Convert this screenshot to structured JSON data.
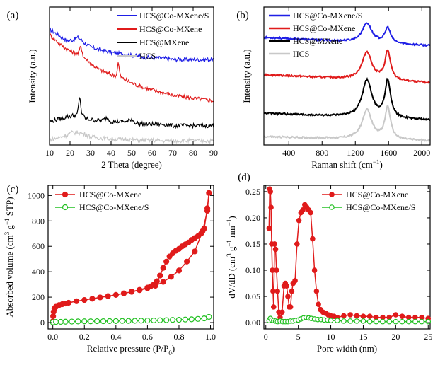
{
  "chart_data": [
    {
      "panel": "(a)",
      "type": "line",
      "xlabel": "2 Theta (degree)",
      "ylabel": "Intensity (a.u.)",
      "xlim": [
        10,
        90
      ],
      "xticks": [
        "10",
        "20",
        "30",
        "40",
        "50",
        "60",
        "70",
        "80",
        "90"
      ],
      "legend_position": "top-right",
      "series": [
        {
          "name": "HCS@Co-MXene/S",
          "color": "#1f1fe6",
          "offset": 0.62,
          "x": [
            10,
            14,
            18,
            21,
            24,
            27,
            30,
            35,
            40,
            45,
            50,
            55,
            60,
            65,
            70,
            75,
            80,
            85,
            90
          ],
          "y": [
            0.84,
            0.8,
            0.76,
            0.76,
            0.78,
            0.74,
            0.71,
            0.69,
            0.67,
            0.66,
            0.65,
            0.64,
            0.63,
            0.63,
            0.62,
            0.62,
            0.62,
            0.62,
            0.62
          ]
        },
        {
          "name": "HCS@Co-MXene",
          "color": "#e01b1b",
          "offset": 0.32,
          "x": [
            10,
            13,
            16,
            19,
            22,
            24,
            25.3,
            26.5,
            28,
            31,
            34,
            37,
            40,
            42.5,
            43.5,
            44.5,
            46,
            50,
            55,
            60,
            65,
            70,
            75,
            80,
            85,
            90
          ],
          "y": [
            0.8,
            0.76,
            0.72,
            0.69,
            0.67,
            0.66,
            0.72,
            0.64,
            0.62,
            0.58,
            0.55,
            0.53,
            0.51,
            0.5,
            0.6,
            0.5,
            0.48,
            0.45,
            0.42,
            0.4,
            0.38,
            0.36,
            0.35,
            0.34,
            0.33,
            0.32
          ]
        },
        {
          "name": "HCS@MXene",
          "color": "#000000",
          "offset": 0.14,
          "x": [
            10,
            15,
            20,
            23.5,
            24.8,
            25.5,
            26.5,
            28,
            32,
            36,
            38,
            40,
            44,
            48,
            50,
            52,
            56,
            60,
            65,
            70,
            75,
            80,
            85,
            90
          ],
          "y": [
            0.17,
            0.19,
            0.21,
            0.22,
            0.36,
            0.24,
            0.21,
            0.19,
            0.18,
            0.18,
            0.2,
            0.17,
            0.17,
            0.17,
            0.19,
            0.16,
            0.15,
            0.15,
            0.15,
            0.14,
            0.14,
            0.14,
            0.14,
            0.14
          ]
        },
        {
          "name": "HCS",
          "color": "#c8c8c8",
          "offset": 0.03,
          "x": [
            10,
            14,
            18,
            21,
            24,
            27,
            30,
            35,
            40,
            45,
            50,
            55,
            60,
            65,
            70,
            75,
            80,
            85,
            90
          ],
          "y": [
            0.04,
            0.05,
            0.07,
            0.09,
            0.09,
            0.08,
            0.06,
            0.05,
            0.045,
            0.04,
            0.04,
            0.035,
            0.035,
            0.03,
            0.03,
            0.03,
            0.03,
            0.03,
            0.03
          ]
        }
      ]
    },
    {
      "panel": "(b)",
      "type": "line",
      "xlabel": "Raman shift (cm−1)",
      "ylabel": "Intensity (a.u.)",
      "xlim": [
        100,
        2100
      ],
      "xticks": [
        "400",
        "800",
        "1200",
        "1600",
        "2000"
      ],
      "legend_position": "top-left",
      "peaks": {
        "D": 1340,
        "G": 1590
      },
      "series": [
        {
          "name": "HCS@Co-MXene/S",
          "color": "#1f1fe6",
          "baseline": 0.72,
          "d_height": 0.14,
          "g_height": 0.11,
          "slope": 0.06
        },
        {
          "name": "HCS@Co-MXene",
          "color": "#e01b1b",
          "baseline": 0.45,
          "d_height": 0.2,
          "g_height": 0.21,
          "slope": 0.06
        },
        {
          "name": "HCS@MXene",
          "color": "#000000",
          "baseline": 0.18,
          "d_height": 0.27,
          "g_height": 0.27,
          "slope": 0.05
        },
        {
          "name": "HCS",
          "color": "#c8c8c8",
          "baseline": 0.03,
          "d_height": 0.21,
          "g_height": 0.23,
          "slope": 0.03
        }
      ]
    },
    {
      "panel": "(c)",
      "type": "line",
      "xlabel": "Relative pressure (P/P0)",
      "ylabel": "Absorbed volume (cm3 g−1 STP)",
      "xlim": [
        -0.03,
        1.02
      ],
      "ylim": [
        -50,
        1080
      ],
      "xticks": [
        0.0,
        0.2,
        0.4,
        0.6,
        0.8,
        1.0
      ],
      "yticks": [
        0,
        200,
        400,
        600,
        800,
        1000
      ],
      "legend_position": "top-left",
      "series": [
        {
          "name": "HCS@Co-MXene",
          "color": "#e01b1b",
          "marker": "filled",
          "x": [
            0.0,
            0.002,
            0.005,
            0.01,
            0.02,
            0.04,
            0.06,
            0.08,
            0.1,
            0.15,
            0.2,
            0.25,
            0.3,
            0.35,
            0.4,
            0.45,
            0.5,
            0.55,
            0.6,
            0.65,
            0.7,
            0.75,
            0.8,
            0.85,
            0.9,
            0.95,
            0.98,
            0.99,
            0.98,
            0.96,
            0.94,
            0.92,
            0.9,
            0.88,
            0.86,
            0.84,
            0.82,
            0.8,
            0.78,
            0.76,
            0.74,
            0.72,
            0.7,
            0.68,
            0.66,
            0.64,
            0.62,
            0.6,
            0.55,
            0.5
          ],
          "y": [
            10,
            50,
            85,
            110,
            125,
            138,
            145,
            150,
            156,
            168,
            178,
            188,
            198,
            208,
            218,
            230,
            242,
            255,
            270,
            290,
            320,
            360,
            410,
            480,
            560,
            720,
            880,
            1020,
            900,
            740,
            700,
            680,
            665,
            650,
            630,
            615,
            600,
            580,
            565,
            545,
            520,
            480,
            430,
            370,
            325,
            300,
            285,
            275,
            258,
            244
          ]
        },
        {
          "name": "HCS@Co-MXene/S",
          "color": "#22c022",
          "marker": "open",
          "x": [
            0.0,
            0.02,
            0.05,
            0.08,
            0.12,
            0.16,
            0.2,
            0.24,
            0.28,
            0.32,
            0.36,
            0.4,
            0.44,
            0.48,
            0.52,
            0.56,
            0.6,
            0.64,
            0.68,
            0.72,
            0.76,
            0.8,
            0.84,
            0.88,
            0.92,
            0.96,
            0.99
          ],
          "y": [
            2,
            5,
            6,
            7,
            8,
            9,
            10,
            10,
            11,
            11,
            12,
            12,
            13,
            13,
            14,
            15,
            16,
            17,
            18,
            19,
            21,
            22,
            24,
            26,
            29,
            33,
            45
          ]
        }
      ]
    },
    {
      "panel": "(d)",
      "type": "line",
      "xlabel": "Pore width (nm)",
      "ylabel": "dV/dD (cm3 g−1 nm−1)",
      "xlim": [
        -0.3,
        25.3
      ],
      "ylim": [
        -0.012,
        0.262
      ],
      "xticks": [
        0,
        5,
        10,
        15,
        20,
        25
      ],
      "yticks": [
        "0.00",
        "0.05",
        "0.10",
        "0.15",
        "0.20",
        "0.25"
      ],
      "legend_position": "top-right",
      "series": [
        {
          "name": "HCS@Co-MXene",
          "color": "#e01b1b",
          "marker": "filled",
          "x": [
            0.5,
            0.6,
            0.7,
            0.8,
            0.9,
            1.0,
            1.1,
            1.2,
            1.35,
            1.5,
            1.65,
            1.8,
            2.0,
            2.2,
            2.5,
            2.8,
            3.0,
            3.2,
            3.4,
            3.6,
            3.8,
            4.0,
            4.2,
            4.5,
            4.8,
            5.1,
            5.4,
            5.7,
            6.0,
            6.3,
            6.6,
            6.9,
            7.2,
            7.5,
            7.8,
            8.1,
            8.4,
            8.8,
            9.2,
            9.6,
            10.0,
            10.5,
            11.0,
            12.0,
            13.0,
            14.0,
            15.0,
            16.0,
            17.0,
            18.0,
            19.0,
            20.0,
            21.0,
            22.0,
            23.0,
            24.0,
            25.0
          ],
          "y": [
            0.18,
            0.255,
            0.25,
            0.22,
            0.15,
            0.1,
            0.06,
            0.03,
            0.15,
            0.14,
            0.1,
            0.06,
            0.02,
            0.01,
            0.02,
            0.07,
            0.075,
            0.07,
            0.05,
            0.03,
            0.03,
            0.06,
            0.075,
            0.08,
            0.15,
            0.195,
            0.21,
            0.215,
            0.225,
            0.22,
            0.215,
            0.21,
            0.16,
            0.1,
            0.06,
            0.035,
            0.025,
            0.02,
            0.018,
            0.015,
            0.013,
            0.012,
            0.01,
            0.013,
            0.015,
            0.013,
            0.012,
            0.012,
            0.01,
            0.01,
            0.01,
            0.015,
            0.012,
            0.01,
            0.01,
            0.01,
            0.008
          ]
        },
        {
          "name": "HCS@Co-MXene/S",
          "color": "#22c022",
          "marker": "open",
          "x": [
            0.5,
            0.7,
            0.9,
            1.2,
            1.5,
            1.8,
            2.2,
            2.6,
            3.0,
            3.4,
            3.8,
            4.2,
            4.6,
            5.0,
            5.4,
            5.8,
            6.2,
            6.6,
            7.0,
            7.5,
            8.0,
            8.5,
            9.0,
            9.5,
            10.0,
            11.0,
            12.0,
            13.0,
            14.0,
            15.0,
            16.0,
            17.0,
            18.0,
            19.0,
            20.0,
            21.0,
            22.0,
            23.0,
            24.0,
            25.0
          ],
          "y": [
            0.004,
            0.008,
            0.005,
            0.004,
            0.003,
            0.002,
            0.003,
            0.002,
            0.002,
            0.002,
            0.003,
            0.003,
            0.004,
            0.005,
            0.007,
            0.009,
            0.01,
            0.009,
            0.008,
            0.007,
            0.006,
            0.006,
            0.005,
            0.005,
            0.004,
            0.004,
            0.003,
            0.003,
            0.003,
            0.003,
            0.002,
            0.002,
            0.002,
            0.002,
            0.002,
            0.002,
            0.002,
            0.002,
            0.002,
            0.002
          ]
        }
      ]
    }
  ]
}
